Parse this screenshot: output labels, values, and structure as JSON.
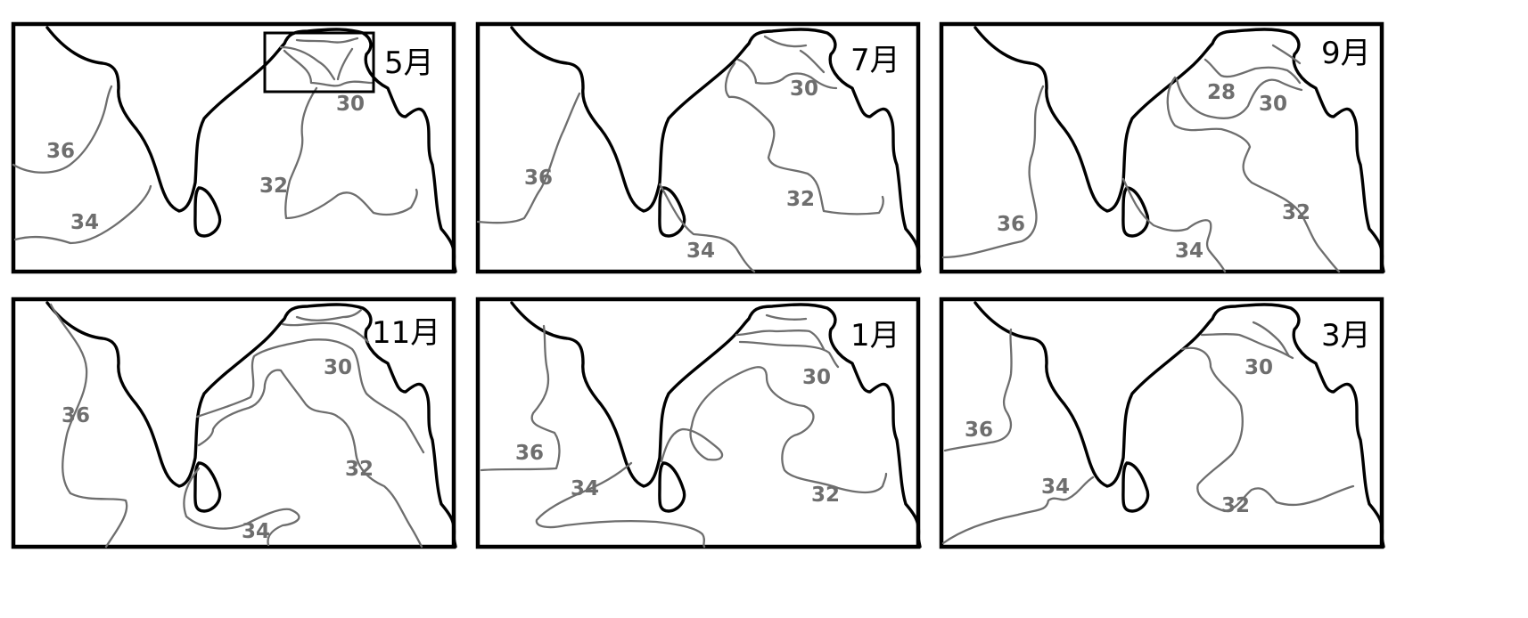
{
  "panels": [
    {
      "month": "5月",
      "isolines": [
        {
          "label": "36"
        },
        {
          "label": "34"
        },
        {
          "label": "32"
        },
        {
          "label": "30"
        }
      ]
    },
    {
      "month": "7月",
      "isolines": [
        {
          "label": "36"
        },
        {
          "label": "34"
        },
        {
          "label": "32"
        },
        {
          "label": "30"
        }
      ]
    },
    {
      "month": "9月",
      "isolines": [
        {
          "label": "36"
        },
        {
          "label": "34"
        },
        {
          "label": "32"
        },
        {
          "label": "30"
        },
        {
          "label": "28"
        }
      ]
    },
    {
      "month": "11月",
      "isolines": [
        {
          "label": "36"
        },
        {
          "label": "34"
        },
        {
          "label": "32"
        },
        {
          "label": "30"
        }
      ]
    },
    {
      "month": "1月",
      "isolines": [
        {
          "label": "36"
        },
        {
          "label": "34"
        },
        {
          "label": "32"
        },
        {
          "label": "30"
        }
      ]
    },
    {
      "month": "3月",
      "isolines": [
        {
          "label": "36"
        },
        {
          "label": "34"
        },
        {
          "label": "32"
        },
        {
          "label": "30"
        }
      ]
    }
  ]
}
